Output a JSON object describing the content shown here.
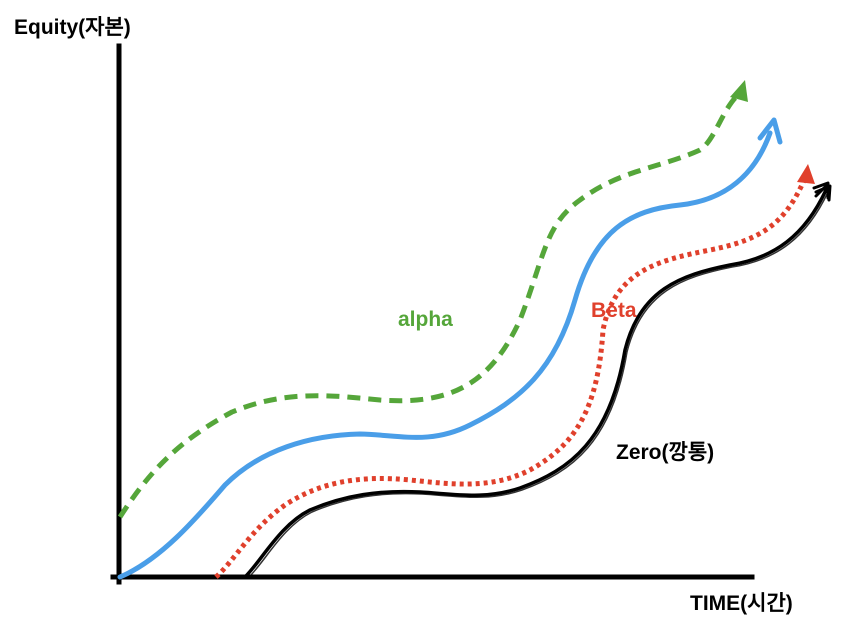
{
  "axes": {
    "y_title": "Equity(자본)",
    "x_title": "TIME(시간)"
  },
  "series": [
    {
      "id": "alpha",
      "label": "alpha",
      "color": "#55a63a",
      "style": "dashed",
      "arrow": "filled"
    },
    {
      "id": "blue",
      "label": "",
      "color": "#4a9ee8",
      "style": "solid",
      "arrow": "open"
    },
    {
      "id": "beta",
      "label": "Beta",
      "color": "#e0402c",
      "style": "dotted",
      "arrow": "filled"
    },
    {
      "id": "zero",
      "label": "Zero(깡통)",
      "color": "#000000",
      "style": "solid-sketch",
      "arrow": "sketch"
    }
  ],
  "colors": {
    "axis": "#000000",
    "background": "#ffffff"
  }
}
